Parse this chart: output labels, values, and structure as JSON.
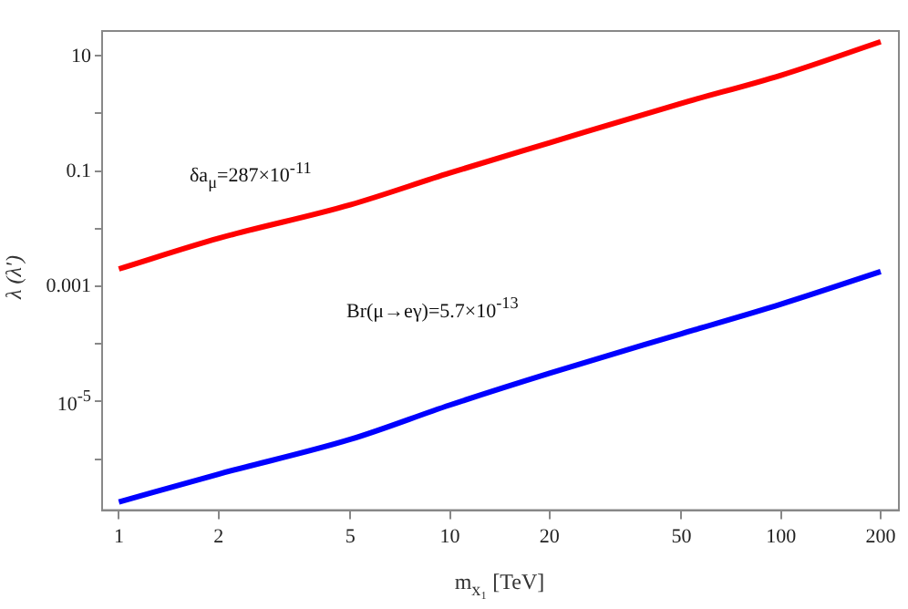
{
  "chart_data": {
    "type": "line",
    "xlabel": "m$_{x₁}$ [TeV]",
    "ylabel": "λ (λ')",
    "log": "xy",
    "grid": false,
    "legend": false,
    "marker": "none",
    "line_style": "solid",
    "xlim": [
      0.89,
      227
    ],
    "xticks": [
      1,
      2,
      5,
      10,
      20,
      50,
      100,
      200
    ],
    "ylim": [
      1.3e-07,
      27
    ],
    "yticks": [
      {
        "value": 1e-06,
        "label": null
      },
      {
        "value": 1e-05,
        "label": "10$^{-5}$"
      },
      {
        "value": 0.0001,
        "label": null
      },
      0.001,
      {
        "value": 0.01,
        "label": null
      },
      0.1,
      {
        "value": 1,
        "label": null
      },
      10
    ],
    "series": [
      {
        "color": "#ff0000",
        "x": [
          1,
          2,
          5,
          10,
          20,
          50,
          100,
          200
        ],
        "values": [
          0.002,
          0.0068,
          0.026,
          0.093,
          0.31,
          1.5,
          4.6,
          17.6
        ]
      },
      {
        "color": "#0000ff",
        "x": [
          1,
          2,
          5,
          10,
          20,
          50,
          100,
          200
        ],
        "values": [
          1.8e-07,
          5.5e-07,
          2.2e-06,
          8.7e-06,
          3.1e-05,
          0.00015,
          0.00049,
          0.0018
        ]
      }
    ],
    "annotations": [
      "δa$_{μ}$=287×10$^{-11}$",
      "Br(μ→eγ)=5.7×10$^{-13}$"
    ]
  }
}
